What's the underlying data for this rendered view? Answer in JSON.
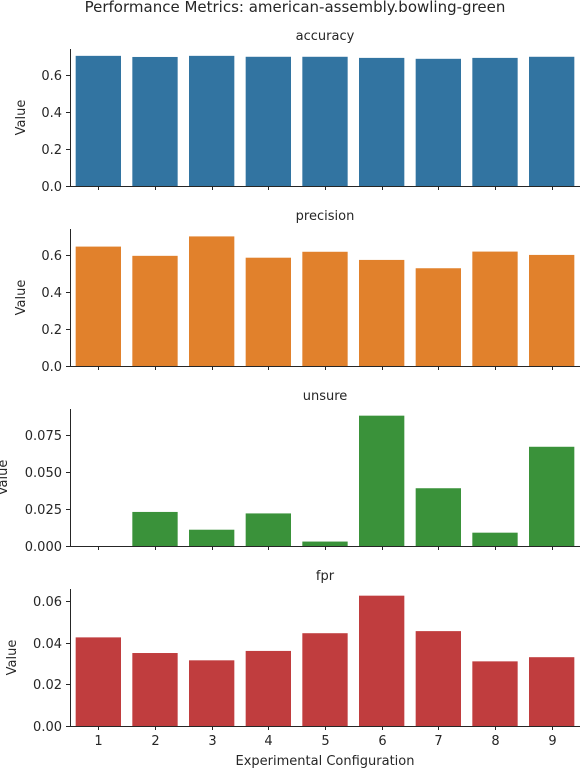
{
  "figure": {
    "title": "Performance Metrics: american-assembly.bowling-green",
    "xlabel": "Experimental Configuration"
  },
  "chart_data": [
    {
      "type": "bar",
      "title": "accuracy",
      "ylabel": "Value",
      "color": "#3274a1",
      "categories": [
        "1",
        "2",
        "3",
        "4",
        "5",
        "6",
        "7",
        "8",
        "9"
      ],
      "values": [
        0.703,
        0.697,
        0.703,
        0.698,
        0.698,
        0.692,
        0.687,
        0.692,
        0.698
      ],
      "ylim": [
        0,
        0.74
      ],
      "yticks": [
        0.0,
        0.2,
        0.4,
        0.6
      ],
      "ytick_labels": [
        "0.0",
        "0.2",
        "0.4",
        "0.6"
      ]
    },
    {
      "type": "bar",
      "title": "precision",
      "ylabel": "Value",
      "color": "#e1812c",
      "categories": [
        "1",
        "2",
        "3",
        "4",
        "5",
        "6",
        "7",
        "8",
        "9"
      ],
      "values": [
        0.645,
        0.595,
        0.7,
        0.585,
        0.617,
        0.573,
        0.528,
        0.618,
        0.6
      ],
      "ylim": [
        0,
        0.74
      ],
      "yticks": [
        0.0,
        0.2,
        0.4,
        0.6
      ],
      "ytick_labels": [
        "0.0",
        "0.2",
        "0.4",
        "0.6"
      ]
    },
    {
      "type": "bar",
      "title": "unsure",
      "ylabel": "Value",
      "color": "#3a923a",
      "categories": [
        "1",
        "2",
        "3",
        "4",
        "5",
        "6",
        "7",
        "8",
        "9"
      ],
      "values": [
        0.0,
        0.023,
        0.011,
        0.022,
        0.003,
        0.088,
        0.039,
        0.009,
        0.067
      ],
      "ylim": [
        0,
        0.0925
      ],
      "yticks": [
        0.0,
        0.025,
        0.05,
        0.075
      ],
      "ytick_labels": [
        "0.000",
        "0.025",
        "0.050",
        "0.075"
      ]
    },
    {
      "type": "bar",
      "title": "fpr",
      "ylabel": "Value",
      "color": "#c03d3e",
      "categories": [
        "1",
        "2",
        "3",
        "4",
        "5",
        "6",
        "7",
        "8",
        "9"
      ],
      "values": [
        0.0425,
        0.035,
        0.0315,
        0.036,
        0.0445,
        0.0625,
        0.0455,
        0.031,
        0.033
      ],
      "ylim": [
        0,
        0.0657
      ],
      "yticks": [
        0.0,
        0.02,
        0.04,
        0.06
      ],
      "ytick_labels": [
        "0.00",
        "0.02",
        "0.04",
        "0.06"
      ]
    }
  ]
}
